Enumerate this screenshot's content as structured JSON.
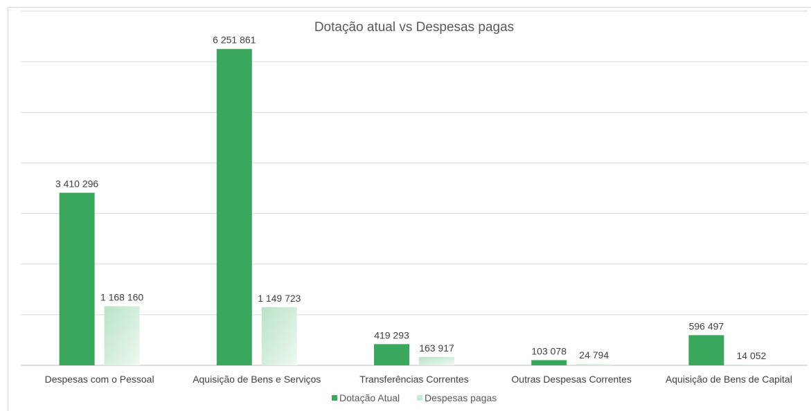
{
  "chart_data": {
    "type": "bar",
    "title": "Dotação atual vs Despesas pagas",
    "categories": [
      "Despesas com o Pessoal",
      "Aquisição de Bens e Serviços",
      "Transferências Correntes",
      "Outras Despesas Correntes",
      "Aquisição de Bens de Capital"
    ],
    "series": [
      {
        "name": "Dotação Atual",
        "values": [
          3410296,
          6251861,
          419293,
          103078,
          596497
        ],
        "labels": [
          "3 410 296",
          "6 251 861",
          "419 293",
          "103 078",
          "596 497"
        ]
      },
      {
        "name": "Despesas pagas",
        "values": [
          1168160,
          1149723,
          163917,
          24794,
          14052
        ],
        "labels": [
          "1 168 160",
          "1 149 723",
          "163 917",
          "24 794",
          "14 052"
        ]
      }
    ],
    "ylim": [
      0,
      7000000
    ],
    "grid": true,
    "legend_position": "bottom",
    "colors": {
      "Dotação Atual": "#3aa85c",
      "Despesas pagas_light": "#eaf6ee",
      "Despesas pagas_dark": "#b8e3c6",
      "gridline": "#d9d9d9",
      "axis": "#bfbfbf"
    }
  }
}
